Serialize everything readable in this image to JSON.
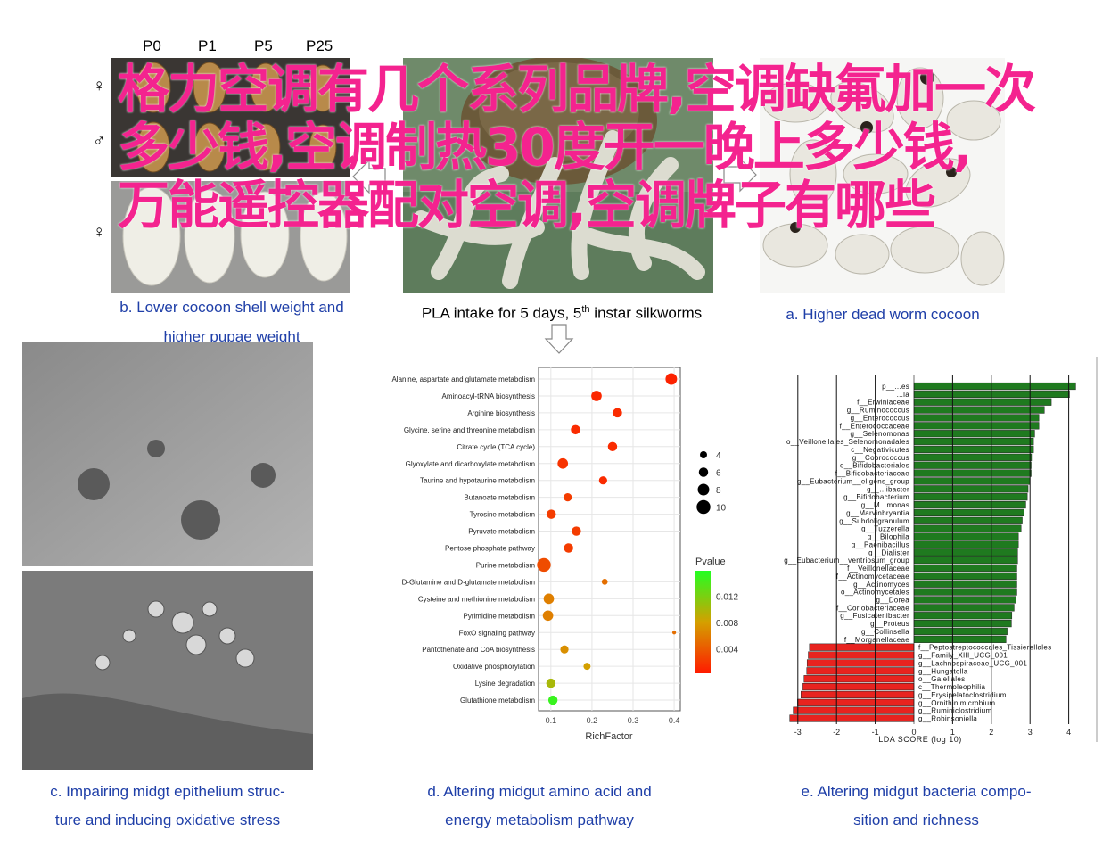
{
  "overlay_title": [
    "格力空调有几个系列品牌,空调缺氟加一次",
    "多少钱,空调制热30度开一晚上多少钱,",
    "万能遥控器配对空调,空调牌子有哪些"
  ],
  "panel_b": {
    "stage_labels": [
      "P0",
      "P1",
      "P5",
      "P25"
    ],
    "sex_symbols": [
      "♀",
      "♂",
      "♀"
    ],
    "caption": [
      "b. Lower cocoon shell weight and",
      "higher pupae weight"
    ]
  },
  "center": {
    "caption_main": "PLA intake for 5 days, 5",
    "caption_sup": "th",
    "caption_tail": " instar silkworms"
  },
  "panel_a": {
    "caption": "a. Higher  dead worm cocoon"
  },
  "panel_c": {
    "caption": [
      "c. Impairing midgt epithelium struc-",
      "ture and inducing oxidative stress"
    ]
  },
  "panel_d": {
    "caption": [
      "d. Altering midgut amino acid and",
      "energy metabolism pathway"
    ]
  },
  "panel_e": {
    "caption": [
      "e. Altering midgut bacteria compo-",
      "sition and richness"
    ]
  },
  "colors": {
    "caption_blue": "#1f3fa8",
    "overlay_pink": "#f4238f",
    "lda_green": "#1f7a1f",
    "lda_red": "#e8231f"
  },
  "icons": [
    "arrow-left-icon",
    "arrow-right-icon",
    "arrow-down-icon"
  ],
  "chart_data": [
    {
      "type": "scatter",
      "xlabel": "RichFactor",
      "xlim": [
        0.07,
        0.415
      ],
      "xticks": [
        "0.1",
        "0.2",
        "0.3",
        "0.4"
      ],
      "xtick_values": [
        0.1,
        0.2,
        0.3,
        0.4
      ],
      "grid": true,
      "size_legend": {
        "labels": [
          "4",
          "6",
          "8",
          "10"
        ]
      },
      "color_legend": {
        "title": "Pvalue",
        "labels": [
          "0.012",
          "0.008",
          "0.004"
        ],
        "values": [
          0.012,
          0.008,
          0.004
        ],
        "range": [
          0,
          0.016
        ],
        "low_color": "#ff1a00",
        "mid_color": "#d4a000",
        "high_color": "#22ff22"
      },
      "points": [
        {
          "pathway": "Alanine, aspartate and glutamate metabolism",
          "rich_factor": 0.393,
          "count": 8,
          "pvalue": 0.0005
        },
        {
          "pathway": "Aminoacyl-tRNA biosynthesis",
          "rich_factor": 0.211,
          "count": 7,
          "pvalue": 0.0008
        },
        {
          "pathway": "Arginine biosynthesis",
          "rich_factor": 0.262,
          "count": 6,
          "pvalue": 0.001
        },
        {
          "pathway": "Glycine, serine and threonine metabolism",
          "rich_factor": 0.16,
          "count": 6,
          "pvalue": 0.001
        },
        {
          "pathway": "Citrate cycle (TCA cycle)",
          "rich_factor": 0.25,
          "count": 6,
          "pvalue": 0.001
        },
        {
          "pathway": "Glyoxylate and dicarboxylate metabolism",
          "rich_factor": 0.129,
          "count": 7,
          "pvalue": 0.0015
        },
        {
          "pathway": "Taurine and hypotaurine metabolism",
          "rich_factor": 0.227,
          "count": 5,
          "pvalue": 0.001
        },
        {
          "pathway": "Butanoate metabolism",
          "rich_factor": 0.141,
          "count": 5,
          "pvalue": 0.002
        },
        {
          "pathway": "Tyrosine metabolism",
          "rich_factor": 0.101,
          "count": 6,
          "pvalue": 0.002
        },
        {
          "pathway": "Pyruvate metabolism",
          "rich_factor": 0.162,
          "count": 6,
          "pvalue": 0.002
        },
        {
          "pathway": "Pentose phosphate pathway",
          "rich_factor": 0.143,
          "count": 6,
          "pvalue": 0.002
        },
        {
          "pathway": "Purine metabolism",
          "rich_factor": 0.083,
          "count": 10,
          "pvalue": 0.003
        },
        {
          "pathway": "D-Glutamine and D-glutamate metabolism",
          "rich_factor": 0.231,
          "count": 3,
          "pvalue": 0.005
        },
        {
          "pathway": "Cysteine and methionine metabolism",
          "rich_factor": 0.095,
          "count": 7,
          "pvalue": 0.006
        },
        {
          "pathway": "Pyrimidine metabolism",
          "rich_factor": 0.093,
          "count": 7,
          "pvalue": 0.006
        },
        {
          "pathway": "FoxO signaling pathway",
          "rich_factor": 0.4,
          "count": 1,
          "pvalue": 0.005
        },
        {
          "pathway": "Pantothenate and CoA biosynthesis",
          "rich_factor": 0.133,
          "count": 5,
          "pvalue": 0.007
        },
        {
          "pathway": "Oxidative phosphorylation",
          "rich_factor": 0.188,
          "count": 4,
          "pvalue": 0.008
        },
        {
          "pathway": "Lysine degradation",
          "rich_factor": 0.1,
          "count": 6,
          "pvalue": 0.01
        },
        {
          "pathway": "Glutathione metabolism",
          "rich_factor": 0.105,
          "count": 6,
          "pvalue": 0.015
        }
      ]
    },
    {
      "type": "bar",
      "orientation": "horizontal",
      "xlabel": "LDA SCORE (log 10)",
      "xlim": [
        -3.3,
        4.3
      ],
      "xticks": [
        "-3",
        "-2",
        "-1",
        "0",
        "1",
        "2",
        "3",
        "4"
      ],
      "xtick_values": [
        -3,
        -2,
        -1,
        0,
        1,
        2,
        3,
        4
      ],
      "grid": true,
      "bars": [
        {
          "taxon": "p__...es",
          "lda": 4.18
        },
        {
          "taxon": "...la",
          "lda": 4.02
        },
        {
          "taxon": "f__Erwiniaceae",
          "lda": 3.55
        },
        {
          "taxon": "g__Ruminococcus",
          "lda": 3.37
        },
        {
          "taxon": "g__Enterococcus",
          "lda": 3.23
        },
        {
          "taxon": "f__Enterococcaceae",
          "lda": 3.23
        },
        {
          "taxon": "g__Selenomonas",
          "lda": 3.12
        },
        {
          "taxon": "o__Veillonellales_Selenomonadales",
          "lda": 3.09
        },
        {
          "taxon": "c__Negativicutes",
          "lda": 3.09
        },
        {
          "taxon": "g__Coprococcus",
          "lda": 3.04
        },
        {
          "taxon": "o__Bifidobacteriales",
          "lda": 3.03
        },
        {
          "taxon": "f__Bifidobacteriaceae",
          "lda": 3.03
        },
        {
          "taxon": "g__Eubacterium__eligens_group",
          "lda": 3.0
        },
        {
          "taxon": "g__...ibacter",
          "lda": 2.95
        },
        {
          "taxon": "g__Bifidobacterium",
          "lda": 2.93
        },
        {
          "taxon": "g__M...monas",
          "lda": 2.89
        },
        {
          "taxon": "g__Marvinbryantia",
          "lda": 2.84
        },
        {
          "taxon": "g__Subdoligranulum",
          "lda": 2.8
        },
        {
          "taxon": "g__Tuzzerella",
          "lda": 2.77
        },
        {
          "taxon": "g__Bilophila",
          "lda": 2.7
        },
        {
          "taxon": "g__Paenibacillus",
          "lda": 2.7
        },
        {
          "taxon": "g__Dialister",
          "lda": 2.68
        },
        {
          "taxon": "g__Eubacterium__ventriosum_group",
          "lda": 2.68
        },
        {
          "taxon": "f__Veillonellaceae",
          "lda": 2.66
        },
        {
          "taxon": "f__Actinomycetaceae",
          "lda": 2.66
        },
        {
          "taxon": "g__Actinomyces",
          "lda": 2.66
        },
        {
          "taxon": "o__Actinomycetales",
          "lda": 2.66
        },
        {
          "taxon": "g__Dorea",
          "lda": 2.64
        },
        {
          "taxon": "f__Coriobacteriaceae",
          "lda": 2.59
        },
        {
          "taxon": "g__Fusicatenibacter",
          "lda": 2.53
        },
        {
          "taxon": "g__Proteus",
          "lda": 2.52
        },
        {
          "taxon": "g__Collinsella",
          "lda": 2.41
        },
        {
          "taxon": "f__Morganellaceae",
          "lda": 2.38
        },
        {
          "taxon": "f__Peptostreptococcales_Tissierellales",
          "lda": -2.7
        },
        {
          "taxon": "g__Family_XIII_UCG_001",
          "lda": -2.73
        },
        {
          "taxon": "g__Lachnospiraceae_UCG_001",
          "lda": -2.76
        },
        {
          "taxon": "g__Hungatella",
          "lda": -2.77
        },
        {
          "taxon": "o__Gaiellales",
          "lda": -2.84
        },
        {
          "taxon": "c__Thermoleophilia",
          "lda": -2.87
        },
        {
          "taxon": "g__Erysipelatoclostridium",
          "lda": -2.92
        },
        {
          "taxon": "g__Ornithinimicrobium",
          "lda": -3.01
        },
        {
          "taxon": "g__Ruminiclostridium",
          "lda": -3.12
        },
        {
          "taxon": "g__Robinsoniella",
          "lda": -3.21
        }
      ]
    }
  ]
}
